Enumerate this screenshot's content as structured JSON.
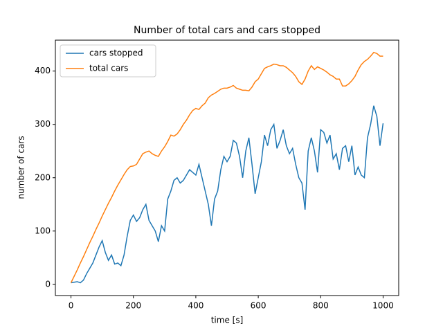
{
  "chart_data": {
    "type": "line",
    "title": "Number of total cars and cars stopped",
    "x_label": "time [s]",
    "y_label": "number of cars",
    "x": [
      0,
      10,
      20,
      30,
      40,
      50,
      60,
      70,
      80,
      90,
      100,
      110,
      120,
      130,
      140,
      150,
      160,
      170,
      180,
      190,
      200,
      210,
      220,
      230,
      240,
      250,
      260,
      270,
      280,
      290,
      300,
      310,
      320,
      330,
      340,
      350,
      360,
      370,
      380,
      390,
      400,
      410,
      420,
      430,
      440,
      450,
      460,
      470,
      480,
      490,
      500,
      510,
      520,
      530,
      540,
      550,
      560,
      570,
      580,
      590,
      600,
      610,
      620,
      630,
      640,
      650,
      660,
      670,
      680,
      690,
      700,
      710,
      720,
      730,
      740,
      750,
      760,
      770,
      780,
      790,
      800,
      810,
      820,
      830,
      840,
      850,
      860,
      870,
      880,
      890,
      900,
      910,
      920,
      930,
      940,
      950,
      960,
      970,
      980,
      990,
      1000
    ],
    "series": [
      {
        "name": "cars stopped",
        "color": "#1f77b4",
        "values": [
          3,
          4,
          5,
          3,
          8,
          20,
          30,
          40,
          55,
          70,
          82,
          60,
          45,
          55,
          38,
          40,
          35,
          55,
          90,
          120,
          130,
          118,
          125,
          140,
          150,
          120,
          110,
          100,
          80,
          110,
          100,
          160,
          175,
          195,
          200,
          190,
          195,
          205,
          215,
          210,
          205,
          225,
          200,
          175,
          150,
          110,
          160,
          175,
          215,
          240,
          230,
          240,
          270,
          265,
          240,
          200,
          250,
          275,
          225,
          170,
          200,
          230,
          280,
          260,
          290,
          300,
          255,
          270,
          290,
          260,
          245,
          255,
          225,
          200,
          190,
          140,
          250,
          275,
          250,
          210,
          290,
          285,
          265,
          280,
          235,
          245,
          215,
          255,
          260,
          230,
          260,
          205,
          220,
          205,
          200,
          275,
          300,
          335,
          315,
          260,
          302
        ]
      },
      {
        "name": "total cars",
        "color": "#ff7f0e",
        "values": [
          3,
          15,
          27,
          40,
          52,
          65,
          78,
          90,
          103,
          115,
          128,
          140,
          152,
          163,
          175,
          186,
          196,
          206,
          215,
          221,
          222,
          225,
          235,
          245,
          248,
          250,
          245,
          242,
          240,
          250,
          258,
          268,
          280,
          278,
          282,
          290,
          300,
          308,
          318,
          326,
          330,
          328,
          335,
          340,
          350,
          355,
          358,
          362,
          366,
          368,
          368,
          370,
          373,
          368,
          366,
          364,
          364,
          363,
          370,
          380,
          385,
          395,
          405,
          408,
          410,
          413,
          412,
          410,
          410,
          407,
          402,
          397,
          390,
          380,
          375,
          385,
          400,
          410,
          403,
          408,
          405,
          402,
          398,
          393,
          390,
          385,
          385,
          372,
          372,
          376,
          382,
          390,
          402,
          412,
          418,
          422,
          428,
          435,
          433,
          428,
          428
        ]
      }
    ],
    "xlim": [
      -50,
      1050
    ],
    "ylim": [
      -21,
      458
    ],
    "xticks": [
      0,
      200,
      400,
      600,
      800,
      1000
    ],
    "yticks": [
      0,
      100,
      200,
      300,
      400
    ],
    "legend": "upper left"
  }
}
